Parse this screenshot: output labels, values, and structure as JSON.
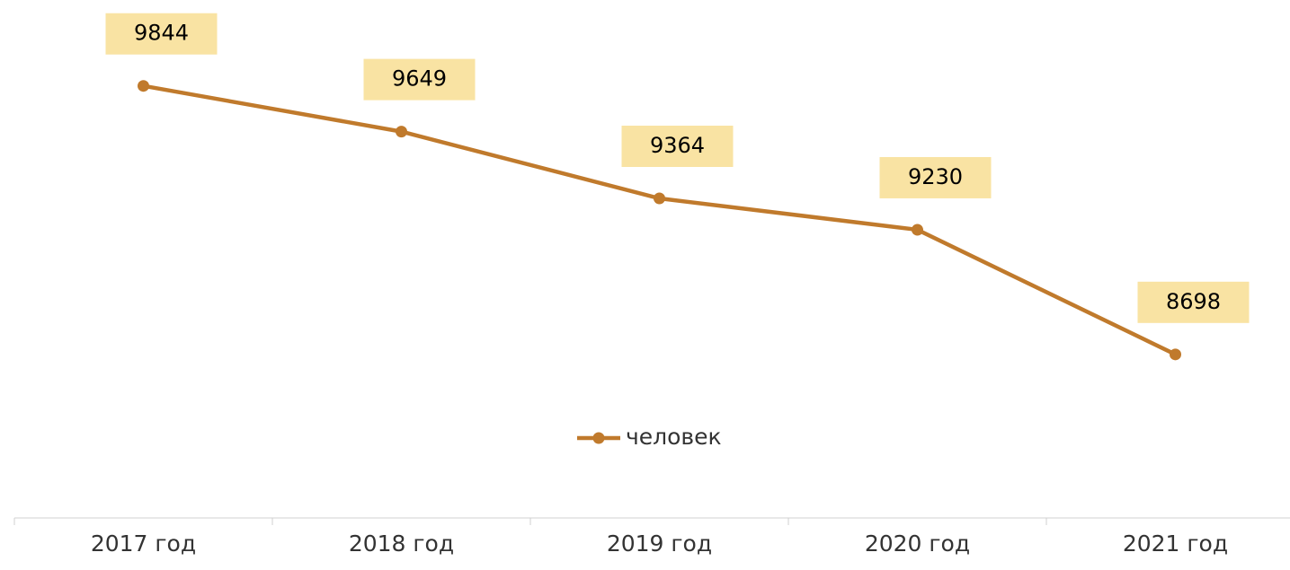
{
  "chart_data": {
    "type": "line",
    "categories": [
      "2017 год",
      "2018 год",
      "2019 год",
      "2020 год",
      "2021 год"
    ],
    "series": [
      {
        "name": "человек",
        "color": "#c07a2c",
        "values": [
          9844,
          9649,
          9364,
          9230,
          8698
        ]
      }
    ],
    "ylim": [
      8000,
      10000
    ],
    "label_fill": "#f9e3a3",
    "legend": "bottom"
  }
}
